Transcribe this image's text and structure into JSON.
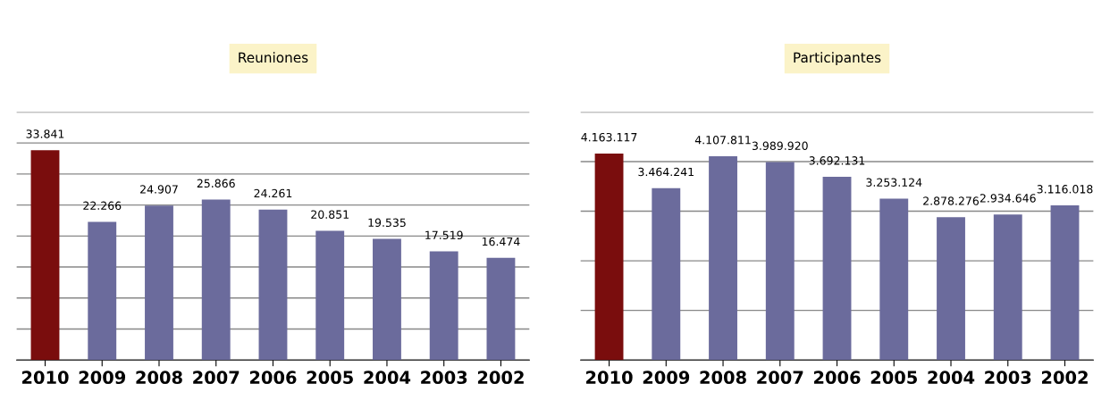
{
  "chart_data": [
    {
      "type": "bar",
      "title": "Reuniones",
      "categories": [
        "2010",
        "2009",
        "2008",
        "2007",
        "2006",
        "2005",
        "2004",
        "2003",
        "2002"
      ],
      "values": [
        33841,
        22266,
        24907,
        25866,
        24261,
        20851,
        19535,
        17519,
        16474
      ],
      "value_labels": [
        "33.841",
        "22.266",
        "24.907",
        "25.866",
        "24.261",
        "20.851",
        "19.535",
        "17.519",
        "16.474"
      ],
      "colors": [
        "#7a0d0d",
        "#6b6b9c",
        "#6b6b9c",
        "#6b6b9c",
        "#6b6b9c",
        "#6b6b9c",
        "#6b6b9c",
        "#6b6b9c",
        "#6b6b9c"
      ],
      "ylim": [
        0,
        40000
      ],
      "yticks": [
        {
          "value": 0,
          "label": null
        },
        {
          "value": 5000,
          "label": null
        },
        {
          "value": 10000,
          "label": null
        },
        {
          "value": 15000,
          "label": null
        },
        {
          "value": 20000,
          "label": null
        },
        {
          "value": 25000,
          "label": null
        },
        {
          "value": 30000,
          "label": null
        },
        {
          "value": 35000,
          "label": null
        },
        {
          "value": 40000,
          "label": null
        }
      ],
      "grid": "y",
      "tick_labels": "x"
    },
    {
      "type": "bar",
      "title": "Participantes",
      "categories": [
        "2010",
        "2009",
        "2008",
        "2007",
        "2006",
        "2005",
        "2004",
        "2003",
        "2002"
      ],
      "values": [
        4163117,
        3464241,
        4107811,
        3989920,
        3692131,
        3253124,
        2878276,
        2934646,
        3116018
      ],
      "value_labels": [
        "4.163.117",
        "3.464.241",
        "4.107.811",
        "3.989.920",
        "3.692.131",
        "3.253.124",
        "2.878.276",
        "2.934.646",
        "3.116.018"
      ],
      "colors": [
        "#7a0d0d",
        "#6b6b9c",
        "#6b6b9c",
        "#6b6b9c",
        "#6b6b9c",
        "#6b6b9c",
        "#6b6b9c",
        "#6b6b9c",
        "#6b6b9c"
      ],
      "ylim": [
        0,
        5000000
      ],
      "yticks": [
        {
          "value": 0,
          "label": null
        },
        {
          "value": 1000000,
          "label": null
        },
        {
          "value": 2000000,
          "label": null
        },
        {
          "value": 3000000,
          "label": null
        },
        {
          "value": 4000000,
          "label": null
        },
        {
          "value": 5000000,
          "label": null
        }
      ],
      "grid": "y",
      "tick_labels": "x"
    }
  ]
}
